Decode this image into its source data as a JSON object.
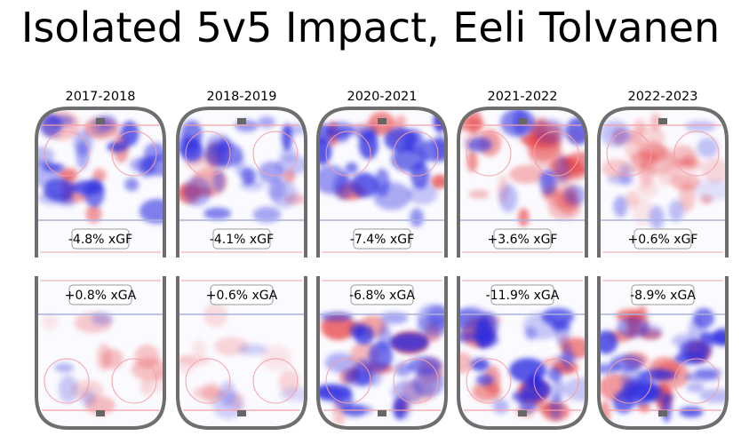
{
  "chart_data": {
    "type": "heatmap",
    "title": "Isolated 5v5 Impact, Eeli Tolvanen",
    "seasons": [
      "2017-2018",
      "2018-2019",
      "2020-2021",
      "2021-2022",
      "2022-2023"
    ],
    "xgf_labels": [
      "-4.8% xGF",
      "-4.1% xGF",
      "-7.4% xGF",
      "+3.6% xGF",
      "+0.6% xGF"
    ],
    "xga_labels": [
      "+0.8% xGA",
      "+0.6% xGA",
      "-6.8% xGA",
      "-11.9% xGA",
      "-8.9% xGA"
    ],
    "xgf_values": [
      -4.8,
      -4.1,
      -7.4,
      3.6,
      0.6
    ],
    "xga_values": [
      0.8,
      0.6,
      -6.8,
      -11.9,
      -8.9
    ],
    "colors": {
      "positive": "#e8474a",
      "negative": "#2b2be0",
      "board": "#6e6e6e",
      "goal_line": "#f4a0a8",
      "blue_line": "#a9b2e0"
    }
  }
}
